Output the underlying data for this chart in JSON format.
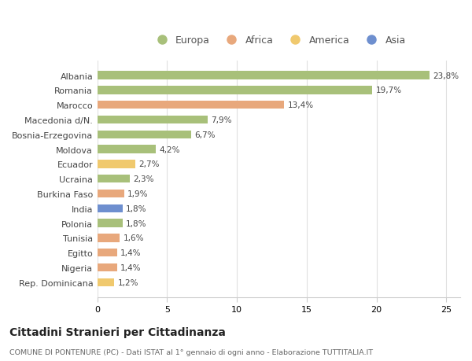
{
  "title": "Cittadini Stranieri per Cittadinanza",
  "subtitle": "COMUNE DI PONTENURE (PC) - Dati ISTAT al 1° gennaio di ogni anno - Elaborazione TUTTITALIA.IT",
  "categories": [
    "Albania",
    "Romania",
    "Marocco",
    "Macedonia d/N.",
    "Bosnia-Erzegovina",
    "Moldova",
    "Ecuador",
    "Ucraina",
    "Burkina Faso",
    "India",
    "Polonia",
    "Tunisia",
    "Egitto",
    "Nigeria",
    "Rep. Dominicana"
  ],
  "values": [
    23.8,
    19.7,
    13.4,
    7.9,
    6.7,
    4.2,
    2.7,
    2.3,
    1.9,
    1.8,
    1.8,
    1.6,
    1.4,
    1.4,
    1.2
  ],
  "labels": [
    "23,8%",
    "19,7%",
    "13,4%",
    "7,9%",
    "6,7%",
    "4,2%",
    "2,7%",
    "2,3%",
    "1,9%",
    "1,8%",
    "1,8%",
    "1,6%",
    "1,4%",
    "1,4%",
    "1,2%"
  ],
  "continents": [
    "Europa",
    "Europa",
    "Africa",
    "Europa",
    "Europa",
    "Europa",
    "America",
    "Europa",
    "Africa",
    "Asia",
    "Europa",
    "Africa",
    "Africa",
    "Africa",
    "America"
  ],
  "continent_colors": {
    "Europa": "#a8c07a",
    "Africa": "#e8a87c",
    "America": "#f0c96e",
    "Asia": "#6e8fcf"
  },
  "legend_order": [
    "Europa",
    "Africa",
    "America",
    "Asia"
  ],
  "xlim": [
    0,
    26
  ],
  "xticks": [
    0,
    5,
    10,
    15,
    20,
    25
  ],
  "background_color": "#ffffff",
  "grid_color": "#e0e0e0",
  "bar_height": 0.55,
  "figsize": [
    6.0,
    4.6
  ],
  "dpi": 100
}
